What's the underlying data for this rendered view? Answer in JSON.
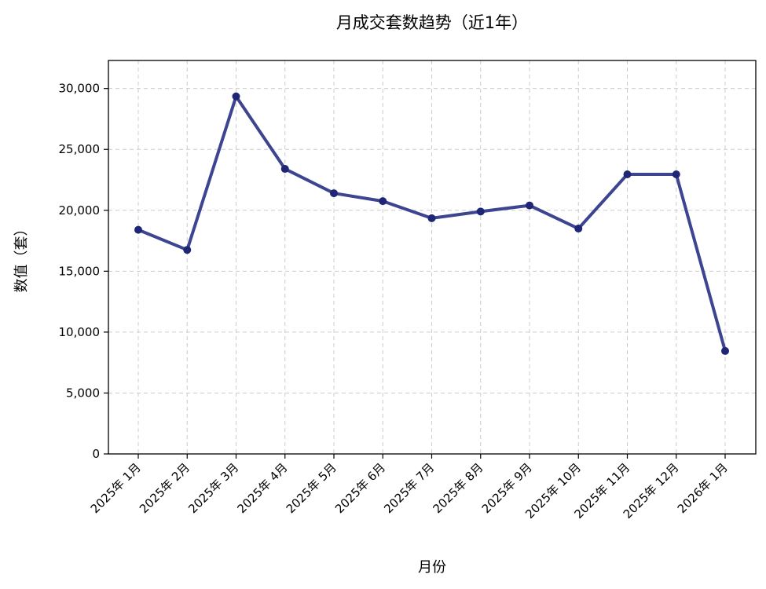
{
  "chart_data": {
    "type": "line",
    "title": "月成交套数趋势（近1年）",
    "xlabel": "月份",
    "ylabel": "数值（套）",
    "categories": [
      "2025年 1月",
      "2025年 2月",
      "2025年 3月",
      "2025年 4月",
      "2025年 5月",
      "2025年 6月",
      "2025年 7月",
      "2025年 8月",
      "2025年 9月",
      "2025年 10月",
      "2025年 11月",
      "2025年 12月",
      "2026年 1月"
    ],
    "series": [
      {
        "values": [
          18400,
          16750,
          29350,
          23400,
          21400,
          20750,
          19350,
          19900,
          20400,
          18500,
          22950,
          22950,
          8450
        ]
      }
    ],
    "ylim": [
      0,
      32300
    ],
    "yticks": [
      0,
      5000,
      10000,
      15000,
      20000,
      25000,
      30000
    ],
    "ytick_labels": [
      "0",
      "5,000",
      "10,000",
      "15,000",
      "20,000",
      "25,000",
      "30,000"
    ],
    "grid": true,
    "grid_style": "dashed",
    "line_color": "#3d4490",
    "marker_color": "#1f2676"
  }
}
